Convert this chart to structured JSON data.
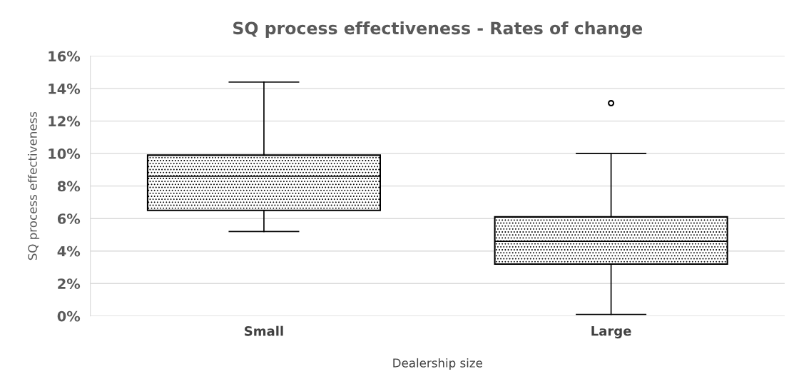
{
  "chart_data": {
    "type": "box",
    "title": "SQ process effectiveness - Rates of change",
    "xlabel": "Dealership size",
    "ylabel": "SQ process effectiveness",
    "categories": [
      "Small",
      "Large"
    ],
    "boxes": [
      {
        "low": 5.2,
        "q1": 6.5,
        "median": 8.6,
        "q3": 9.9,
        "high": 14.4
      },
      {
        "low": 0.1,
        "q1": 3.2,
        "median": 4.6,
        "q3": 6.1,
        "high": 10.0,
        "outliers": [
          13.1
        ]
      }
    ],
    "ylim": [
      0,
      16
    ],
    "yticks": [
      {
        "value": 0,
        "label": "0%"
      },
      {
        "value": 2,
        "label": "2%"
      },
      {
        "value": 4,
        "label": "4%"
      },
      {
        "value": 6,
        "label": "6%"
      },
      {
        "value": 8,
        "label": "8%"
      },
      {
        "value": 10,
        "label": "10%"
      },
      {
        "value": 12,
        "label": "12%"
      },
      {
        "value": 14,
        "label": "14%"
      },
      {
        "value": 16,
        "label": "16%"
      }
    ],
    "grid": "y",
    "legend": false
  }
}
